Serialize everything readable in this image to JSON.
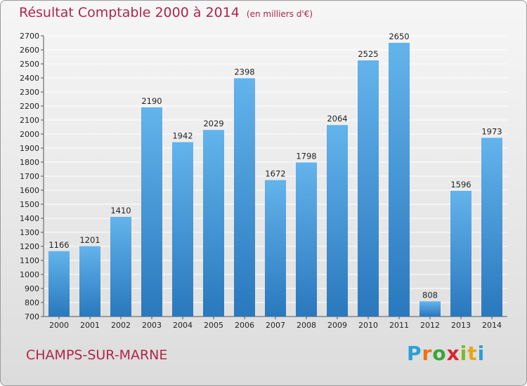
{
  "header": {
    "title": "Résultat Comptable 2000 à 2014",
    "subtitle": "(en milliers d'€)"
  },
  "footer": {
    "place": "CHAMPS-SUR-MARNE",
    "logo": {
      "letters": [
        "P",
        "r",
        "o",
        "x",
        "i",
        "t",
        "i"
      ],
      "colors": [
        "#2a9fd8",
        "#e8731a",
        "#3aa53a",
        "#d8262e",
        "#7bbb2a",
        "#e8a31a",
        "#2a9fd8"
      ]
    }
  },
  "colors": {
    "bar_light": "#63b3ec",
    "bar_dark": "#2a78bd",
    "grid": "#ffffff",
    "title": "#b0254a"
  },
  "chart_data": {
    "type": "bar",
    "title": "Résultat Comptable 2000 à 2014",
    "subtitle": "(en milliers d'€)",
    "categories": [
      "2000",
      "2001",
      "2002",
      "2003",
      "2004",
      "2005",
      "2006",
      "2007",
      "2008",
      "2009",
      "2010",
      "2011",
      "2012",
      "2013",
      "2014"
    ],
    "values": [
      1166,
      1201,
      1410,
      2190,
      1942,
      2029,
      2398,
      1672,
      1798,
      2064,
      2525,
      2650,
      808,
      1596,
      1973
    ],
    "ylim": [
      700,
      2700
    ],
    "yticks": [
      700,
      800,
      900,
      1000,
      1100,
      1200,
      1300,
      1400,
      1500,
      1600,
      1700,
      1800,
      1900,
      2000,
      2100,
      2200,
      2300,
      2400,
      2500,
      2600,
      2700
    ],
    "grid": true,
    "legend": "none",
    "xlabel": "",
    "ylabel": ""
  }
}
